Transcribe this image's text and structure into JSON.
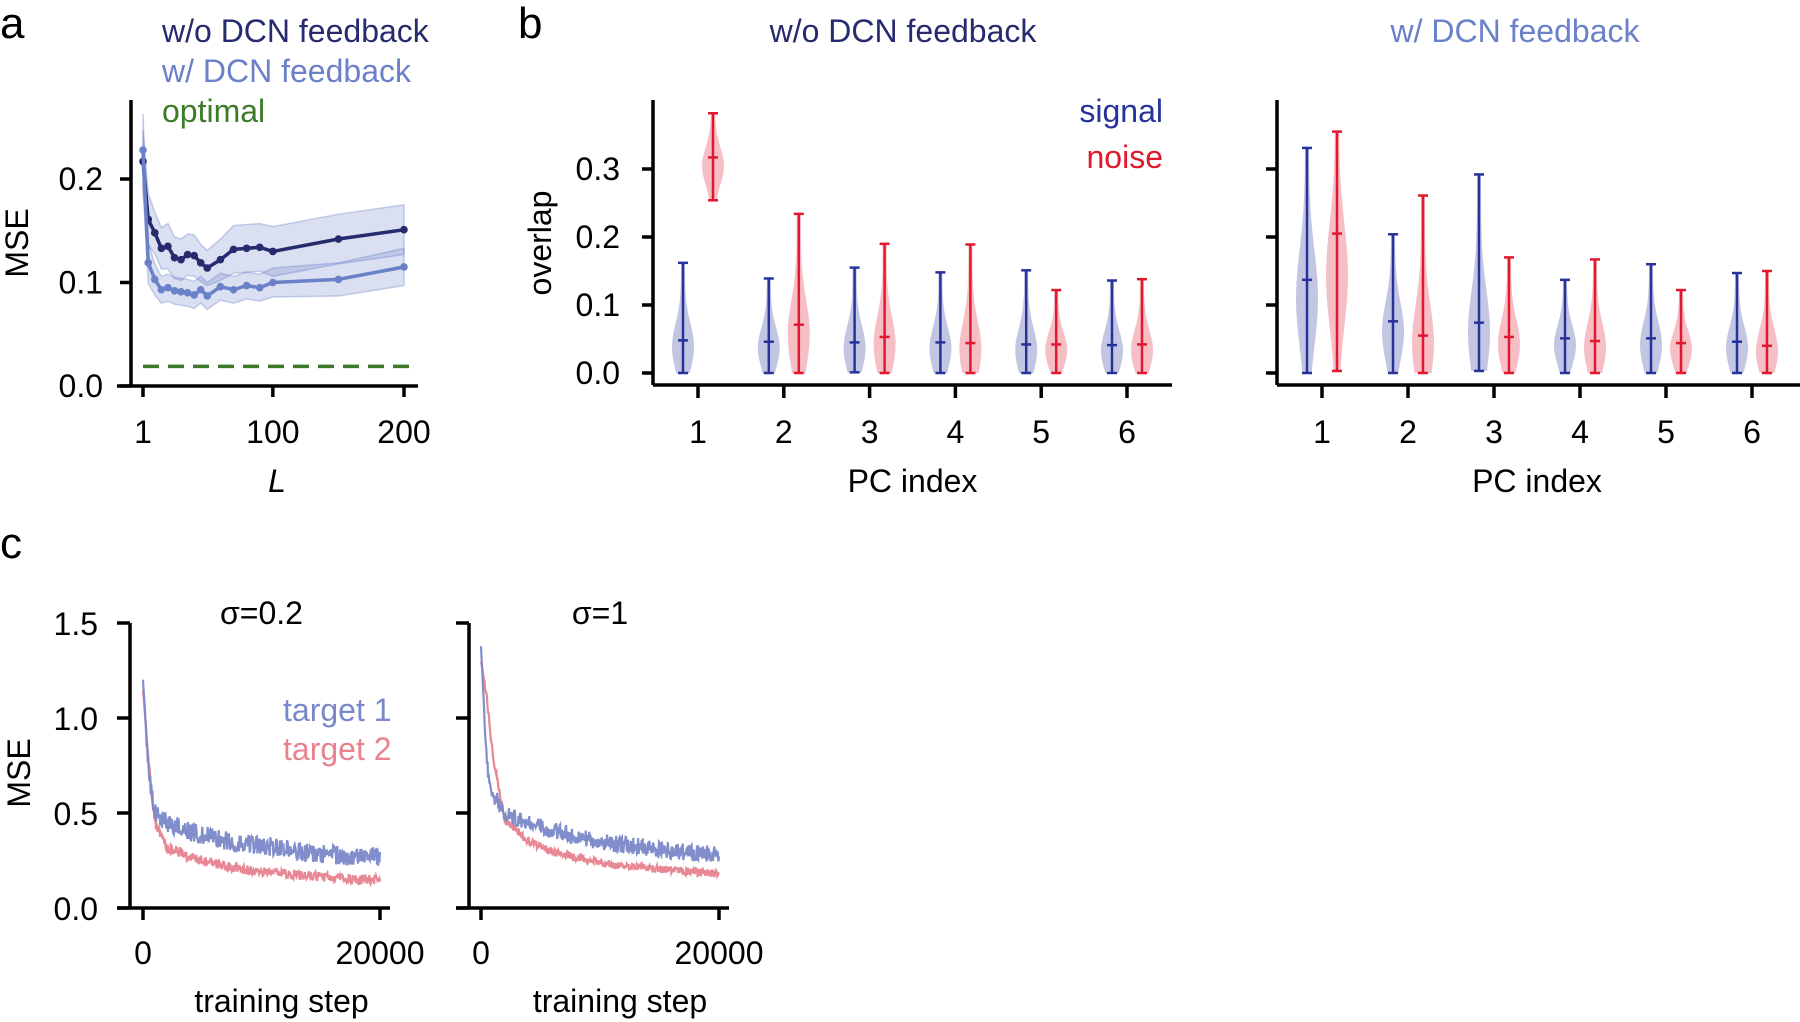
{
  "panel_labels": {
    "a": "a",
    "b": "b",
    "c": "c"
  },
  "colors": {
    "without_feedback": "#262a6e",
    "with_feedback": "#6a80c8",
    "optimal": "#3d7a2a",
    "signal": "#26339a",
    "noise": "#e0192e",
    "target1": "#7a88c8",
    "target2": "#e8828f"
  },
  "chart_data": [
    {
      "id": "a",
      "type": "line",
      "xlabel": "L",
      "ylabel": "MSE",
      "xlim": [
        1,
        200
      ],
      "ylim": [
        0,
        0.25
      ],
      "xticks": [
        1,
        100,
        200
      ],
      "xtick_labels": [
        "1",
        "100",
        "200"
      ],
      "yticks": [
        0.0,
        0.1,
        0.2
      ],
      "ytick_labels": [
        "0.0",
        "0.1",
        "0.2"
      ],
      "legend": [
        "w/o DCN feedback",
        "w/ DCN feedback",
        "optimal"
      ],
      "legend_placement": "top",
      "x": [
        1,
        5,
        10,
        15,
        20,
        25,
        30,
        35,
        40,
        45,
        50,
        60,
        70,
        80,
        90,
        100,
        150,
        200
      ],
      "series": [
        {
          "name": "w/o DCN feedback",
          "values": [
            0.217,
            0.161,
            0.148,
            0.133,
            0.135,
            0.124,
            0.122,
            0.127,
            0.126,
            0.119,
            0.114,
            0.122,
            0.132,
            0.133,
            0.134,
            0.13,
            0.142,
            0.151
          ],
          "spread": [
            0.03,
            0.025,
            0.02,
            0.02,
            0.022,
            0.02,
            0.02,
            0.02,
            0.02,
            0.018,
            0.017,
            0.02,
            0.023,
            0.023,
            0.023,
            0.024,
            0.024,
            0.024
          ]
        },
        {
          "name": "w/ DCN feedback",
          "values": [
            0.228,
            0.119,
            0.103,
            0.093,
            0.095,
            0.092,
            0.091,
            0.09,
            0.088,
            0.093,
            0.087,
            0.096,
            0.093,
            0.097,
            0.095,
            0.1,
            0.103,
            0.115
          ],
          "spread": [
            0.035,
            0.02,
            0.015,
            0.013,
            0.013,
            0.013,
            0.013,
            0.013,
            0.013,
            0.013,
            0.013,
            0.013,
            0.013,
            0.013,
            0.013,
            0.014,
            0.016,
            0.018
          ]
        }
      ],
      "optimal": 0.019
    },
    {
      "id": "b-left",
      "type": "violin",
      "title": "w/o DCN feedback",
      "xlabel": "PC index",
      "ylabel": "overlap",
      "categories": [
        "1",
        "2",
        "3",
        "4",
        "5",
        "6"
      ],
      "yticks": [
        0.0,
        0.1,
        0.2,
        0.3
      ],
      "ytick_labels": [
        "0.0",
        "0.1",
        "0.2",
        "0.3"
      ],
      "legend": [
        "signal",
        "noise"
      ],
      "legend_placement": "top-right",
      "series": [
        {
          "name": "signal",
          "min": [
            0,
            0,
            0.001,
            0,
            0,
            0
          ],
          "median": [
            0.048,
            0.046,
            0.045,
            0.045,
            0.042,
            0.041
          ],
          "max": [
            0.162,
            0.139,
            0.155,
            0.148,
            0.151,
            0.136
          ]
        },
        {
          "name": "noise",
          "min": [
            0.254,
            0,
            0,
            0,
            0,
            0
          ],
          "median": [
            0.317,
            0.071,
            0.053,
            0.044,
            0.042,
            0.042
          ],
          "max": [
            0.382,
            0.234,
            0.19,
            0.189,
            0.122,
            0.138
          ]
        }
      ]
    },
    {
      "id": "b-right",
      "type": "violin",
      "title": "w/ DCN feedback",
      "xlabel": "PC index",
      "categories": [
        "1",
        "2",
        "3",
        "4",
        "5",
        "6"
      ],
      "yticks": [
        0.0,
        0.1,
        0.2,
        0.3
      ],
      "series": [
        {
          "name": "signal",
          "min": [
            0,
            0,
            0.003,
            0,
            0,
            0
          ],
          "median": [
            0.137,
            0.076,
            0.074,
            0.051,
            0.051,
            0.046
          ],
          "max": [
            0.331,
            0.204,
            0.292,
            0.137,
            0.16,
            0.147
          ]
        },
        {
          "name": "noise",
          "min": [
            0.003,
            0,
            0,
            0,
            0,
            0
          ],
          "median": [
            0.205,
            0.055,
            0.053,
            0.047,
            0.044,
            0.04
          ],
          "max": [
            0.355,
            0.261,
            0.17,
            0.167,
            0.122,
            0.15
          ]
        }
      ]
    },
    {
      "id": "c-left",
      "type": "line",
      "title": "σ=0.2",
      "xlabel": "training step",
      "ylabel": "MSE",
      "xlim": [
        0,
        20000
      ],
      "ylim": [
        0,
        1.5
      ],
      "xtick_labels": [
        "0",
        "20000"
      ],
      "ytick_labels": [
        "0.0",
        "0.5",
        "1.0",
        "1.5"
      ],
      "legend": [
        "target 1",
        "target 2"
      ],
      "legend_placement": "right",
      "x": [
        0,
        500,
        1000,
        2000,
        4000,
        6000,
        8000,
        10000,
        12000,
        14000,
        16000,
        18000,
        20000
      ],
      "series": [
        {
          "name": "target 1",
          "values": [
            1.2,
            0.7,
            0.5,
            0.45,
            0.4,
            0.37,
            0.34,
            0.33,
            0.31,
            0.29,
            0.28,
            0.27,
            0.27
          ],
          "noise": 0.05
        },
        {
          "name": "target 2",
          "values": [
            1.15,
            0.75,
            0.45,
            0.32,
            0.27,
            0.23,
            0.21,
            0.19,
            0.18,
            0.17,
            0.16,
            0.15,
            0.15
          ],
          "noise": 0.025
        }
      ]
    },
    {
      "id": "c-right",
      "type": "line",
      "title": "σ=1",
      "xlabel": "training step",
      "xlim": [
        0,
        20000
      ],
      "ylim": [
        0,
        1.5
      ],
      "xtick_labels": [
        "0",
        "20000"
      ],
      "x": [
        0,
        500,
        1000,
        2000,
        4000,
        6000,
        8000,
        10000,
        12000,
        14000,
        16000,
        18000,
        20000
      ],
      "series": [
        {
          "name": "target 1",
          "values": [
            1.38,
            0.75,
            0.6,
            0.5,
            0.45,
            0.41,
            0.38,
            0.35,
            0.33,
            0.32,
            0.3,
            0.29,
            0.28
          ],
          "noise": 0.045
        },
        {
          "name": "target 2",
          "values": [
            1.3,
            1.1,
            0.8,
            0.47,
            0.35,
            0.3,
            0.27,
            0.24,
            0.22,
            0.21,
            0.2,
            0.19,
            0.18
          ],
          "noise": 0.02
        }
      ]
    }
  ]
}
